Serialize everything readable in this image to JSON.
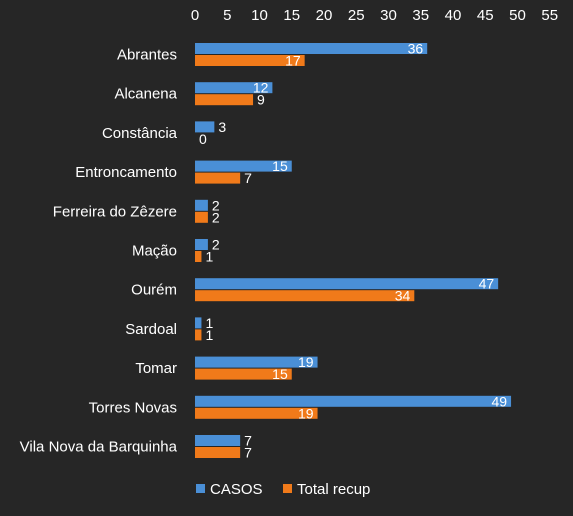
{
  "chart_data": {
    "type": "bar",
    "orientation": "horizontal",
    "x_axis_position": "top",
    "xlim": [
      0,
      55
    ],
    "xticks": [
      0,
      5,
      10,
      15,
      20,
      25,
      30,
      35,
      40,
      45,
      50,
      55
    ],
    "grid": false,
    "legend_position": "bottom",
    "categories": [
      "Abrantes",
      "Alcanena",
      "Constância",
      "Entroncamento",
      "Ferreira do Zêzere",
      "Mação",
      "Ourém",
      "Sardoal",
      "Tomar",
      "Torres Novas",
      "Vila Nova da Barquinha"
    ],
    "series": [
      {
        "name": "CASOS",
        "color": "#4a8fd6",
        "values": [
          36,
          12,
          3,
          15,
          2,
          2,
          47,
          1,
          19,
          49,
          7
        ]
      },
      {
        "name": "Total recup",
        "color": "#f07a1a",
        "values": [
          17,
          9,
          0,
          7,
          2,
          1,
          34,
          1,
          15,
          19,
          7
        ]
      }
    ],
    "background_color": "#262626",
    "text_color": "#ffffff"
  }
}
